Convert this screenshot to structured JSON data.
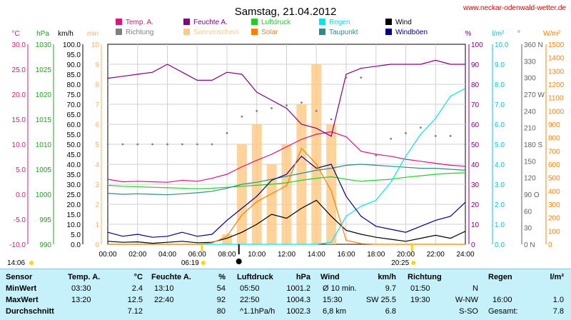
{
  "header": {
    "title": "Samstag, 21.04.2012",
    "url": "www.neckar-odenwald-wetter.de"
  },
  "legend": [
    {
      "label": "Temp. A.",
      "color": "#e0127a"
    },
    {
      "label": "Feuchte A.",
      "color": "#800080"
    },
    {
      "label": "Luftdruck",
      "color": "#20d020"
    },
    {
      "label": "Regen",
      "color": "#00e5ee"
    },
    {
      "label": "Wind",
      "color": "#000000"
    },
    {
      "label": "Richtung",
      "color": "#808080"
    },
    {
      "label": "Sonnenschein",
      "color": "#ffc880"
    },
    {
      "label": "Solar",
      "color": "#ff7f00"
    },
    {
      "label": "Taupunkt",
      "color": "#2e8b8b"
    },
    {
      "label": "Windböen",
      "color": "#00008b"
    }
  ],
  "axis_units": {
    "temp": "°C",
    "pressure": "hPa",
    "wind": "km/h",
    "sun": "min",
    "hum": "%",
    "rain": "l/m²",
    "dir": "°",
    "solar": "W/m²"
  },
  "axes": {
    "temp": [
      "30.0",
      "25.0",
      "20.0",
      "15.0",
      "10.0",
      "5.0",
      "0.0",
      "-5.0",
      "-10.0"
    ],
    "pressure": [
      "1030",
      "1025",
      "1020",
      "1015",
      "1010",
      "1005",
      "1000",
      "995",
      "990"
    ],
    "wind": [
      "100.0",
      "95.0",
      "90.0",
      "85.0",
      "80.0",
      "75.0",
      "70.0",
      "65.0",
      "60.0",
      "55.0",
      "50.0",
      "45.0",
      "40.0",
      "35.0",
      "30.0",
      "25.0",
      "20.0",
      "15.0",
      "10.0",
      "5.0",
      "0.0"
    ],
    "sun": [
      "10",
      "9",
      "8",
      "7",
      "6",
      "5",
      "4",
      "3",
      "2",
      "1",
      "0"
    ],
    "hum": [
      "100",
      "90",
      "80",
      "70",
      "60",
      "50",
      "40",
      "30",
      "20",
      "10",
      "0"
    ],
    "rain": [
      "10.0",
      "9.0",
      "8.0",
      "7.0",
      "6.0",
      "5.0",
      "4.0",
      "3.0",
      "2.0",
      "1.0",
      "0.0"
    ],
    "dir": [
      "360 N",
      "330",
      "300",
      "270 W",
      "240",
      "210",
      "180 S",
      "150",
      "120",
      "90 O",
      "60",
      "30",
      "0 N"
    ],
    "solar": [
      "1500",
      "1400",
      "1300",
      "1200",
      "1100",
      "1000",
      "900",
      "800",
      "700",
      "600",
      "500",
      "400",
      "300",
      "200",
      "100",
      "0"
    ],
    "x": [
      "00:00",
      "02:00",
      "04:00",
      "06:00",
      "08:00",
      "10:00",
      "12:00",
      "14:00",
      "16:00",
      "18:00",
      "20:00",
      "22:00",
      "24:00"
    ]
  },
  "sun_marks": {
    "sunrise": "06:19",
    "sunset": "20:25",
    "moonrise": "14:06"
  },
  "chart_data": {
    "type": "line",
    "x_unit": "hours",
    "x": [
      0,
      1,
      2,
      3,
      4,
      5,
      6,
      7,
      8,
      9,
      10,
      11,
      12,
      13,
      14,
      15,
      16,
      17,
      18,
      19,
      20,
      21,
      22,
      23,
      24
    ],
    "series": [
      {
        "name": "Temp. A.",
        "axis": "temp",
        "color": "#e0127a",
        "values": [
          3.0,
          2.5,
          2.6,
          2.5,
          2.4,
          2.8,
          2.6,
          3.2,
          4.0,
          5.5,
          6.8,
          8.0,
          9.5,
          11.0,
          12.0,
          12.5,
          11.5,
          8.6,
          8.0,
          7.6,
          7.0,
          6.6,
          6.2,
          5.8,
          5.6
        ]
      },
      {
        "name": "Feuchte A.",
        "axis": "hum",
        "color": "#800080",
        "values": [
          83,
          84,
          85,
          86,
          90,
          86,
          82,
          82,
          86,
          85,
          76,
          72,
          68,
          60,
          58,
          54,
          85,
          88,
          89,
          90,
          90,
          90,
          92,
          90,
          90
        ]
      },
      {
        "name": "Luftdruck",
        "axis": "pressure",
        "color": "#20d020",
        "values": [
          1001.8,
          1001.6,
          1001.5,
          1001.4,
          1001.3,
          1001.2,
          1001.1,
          1001.2,
          1001.4,
          1001.6,
          1001.8,
          1002.0,
          1002.3,
          1002.8,
          1003.2,
          1003.5,
          1003.0,
          1002.6,
          1002.8,
          1003.0,
          1003.4,
          1003.7,
          1004.0,
          1004.2,
          1004.3
        ]
      },
      {
        "name": "Taupunkt",
        "axis": "temp",
        "color": "#2e8b8b",
        "values": [
          0.2,
          0.0,
          0.1,
          0.0,
          -0.1,
          0.1,
          0.3,
          0.6,
          1.2,
          2.0,
          2.4,
          3.0,
          3.6,
          4.2,
          4.8,
          5.2,
          5.8,
          6.0,
          5.8,
          5.6,
          5.4,
          5.2,
          5.2,
          5.0,
          4.8
        ]
      },
      {
        "name": "Regen",
        "axis": "rain",
        "color": "#00e5ee",
        "values": [
          0,
          0,
          0,
          0,
          0,
          0,
          0,
          0,
          0,
          0,
          0,
          0,
          0,
          0,
          0,
          0.1,
          1.4,
          1.9,
          2.2,
          3.1,
          4.4,
          5.5,
          6.3,
          7.4,
          7.8
        ]
      },
      {
        "name": "Wind",
        "axis": "wind",
        "color": "#000000",
        "values": [
          1.5,
          1.0,
          1.2,
          0.5,
          1.0,
          1.5,
          0.8,
          1.0,
          3.0,
          6.0,
          10.0,
          15.0,
          13.0,
          18.0,
          22.0,
          14.0,
          7.0,
          5.0,
          3.5,
          2.5,
          1.5,
          3.0,
          4.5,
          3.0,
          6.5
        ]
      },
      {
        "name": "Windböen",
        "axis": "wind",
        "color": "#00008b",
        "values": [
          6.0,
          4.0,
          5.0,
          3.5,
          4.0,
          6.0,
          4.0,
          5.0,
          12.0,
          18.0,
          24.0,
          32.0,
          35.0,
          44.0,
          38.0,
          40.0,
          24.0,
          14.0,
          9.0,
          7.5,
          6.0,
          9.0,
          12.0,
          14.0,
          21.0
        ]
      },
      {
        "name": "Solar",
        "axis": "solar",
        "color": "#ff7f00",
        "values": [
          0,
          0,
          0,
          0,
          0,
          0,
          0,
          10,
          60,
          220,
          320,
          380,
          440,
          720,
          600,
          400,
          30,
          5,
          0,
          0,
          0,
          0,
          0,
          0,
          0
        ]
      },
      {
        "name": "Sonnenschein",
        "axis": "sun",
        "color": "#ffc880",
        "values": [
          0,
          0,
          0,
          0,
          0,
          0,
          0,
          0,
          0.5,
          5,
          6,
          4,
          5,
          7,
          9,
          6,
          0,
          0,
          0,
          0,
          0,
          0,
          0,
          0,
          0
        ]
      },
      {
        "name": "Richtung",
        "axis": "dir",
        "color": "#808080",
        "values": [
          180,
          180,
          180,
          180,
          180,
          180,
          180,
          180,
          200,
          230,
          240,
          245,
          250,
          255,
          240,
          225,
          300,
          300,
          160,
          190,
          200,
          210,
          195,
          195,
          180
        ]
      }
    ]
  },
  "table": {
    "headers": [
      "Sensor",
      "Temp. A.",
      "°C",
      "Feuchte A.",
      "%",
      "Luftdruck",
      "hPa",
      "Wind",
      "km/h",
      "Richtung",
      "",
      "Regen",
      "l/m²"
    ],
    "rows": [
      {
        "label": "MinWert",
        "t_time": "03:30",
        "t_val": "2.4",
        "h_time": "13:10",
        "h_val": "54",
        "p_time": "05:50",
        "p_val": "1001.2",
        "w_time": "Ø 10 min.",
        "w_val": "9.7",
        "d_time": "01:50",
        "d_val": "N",
        "r_time": "",
        "r_val": ""
      },
      {
        "label": "MaxWert",
        "t_time": "13:20",
        "t_val": "12.5",
        "h_time": "22:40",
        "h_val": "92",
        "p_time": "22:50",
        "p_val": "1004.3",
        "w_time": "15:30",
        "w_dir": "SW 25.5",
        "w_val": "",
        "d_time": "19:30",
        "d_val": "W-NW",
        "r_time": "16:00",
        "r_val": "1.0"
      },
      {
        "label": "Durchschnitt",
        "t_time": "",
        "t_val": "7.12",
        "h_time": "",
        "h_val": "80",
        "p_time": "^1.1hPa/h",
        "p_val": "1002.3",
        "w_time": "6,8 km",
        "w_val": "6.8",
        "d_time": "",
        "d_val": "S-SO",
        "r_time": "Gesamt:",
        "r_val": "7.8"
      }
    ]
  }
}
